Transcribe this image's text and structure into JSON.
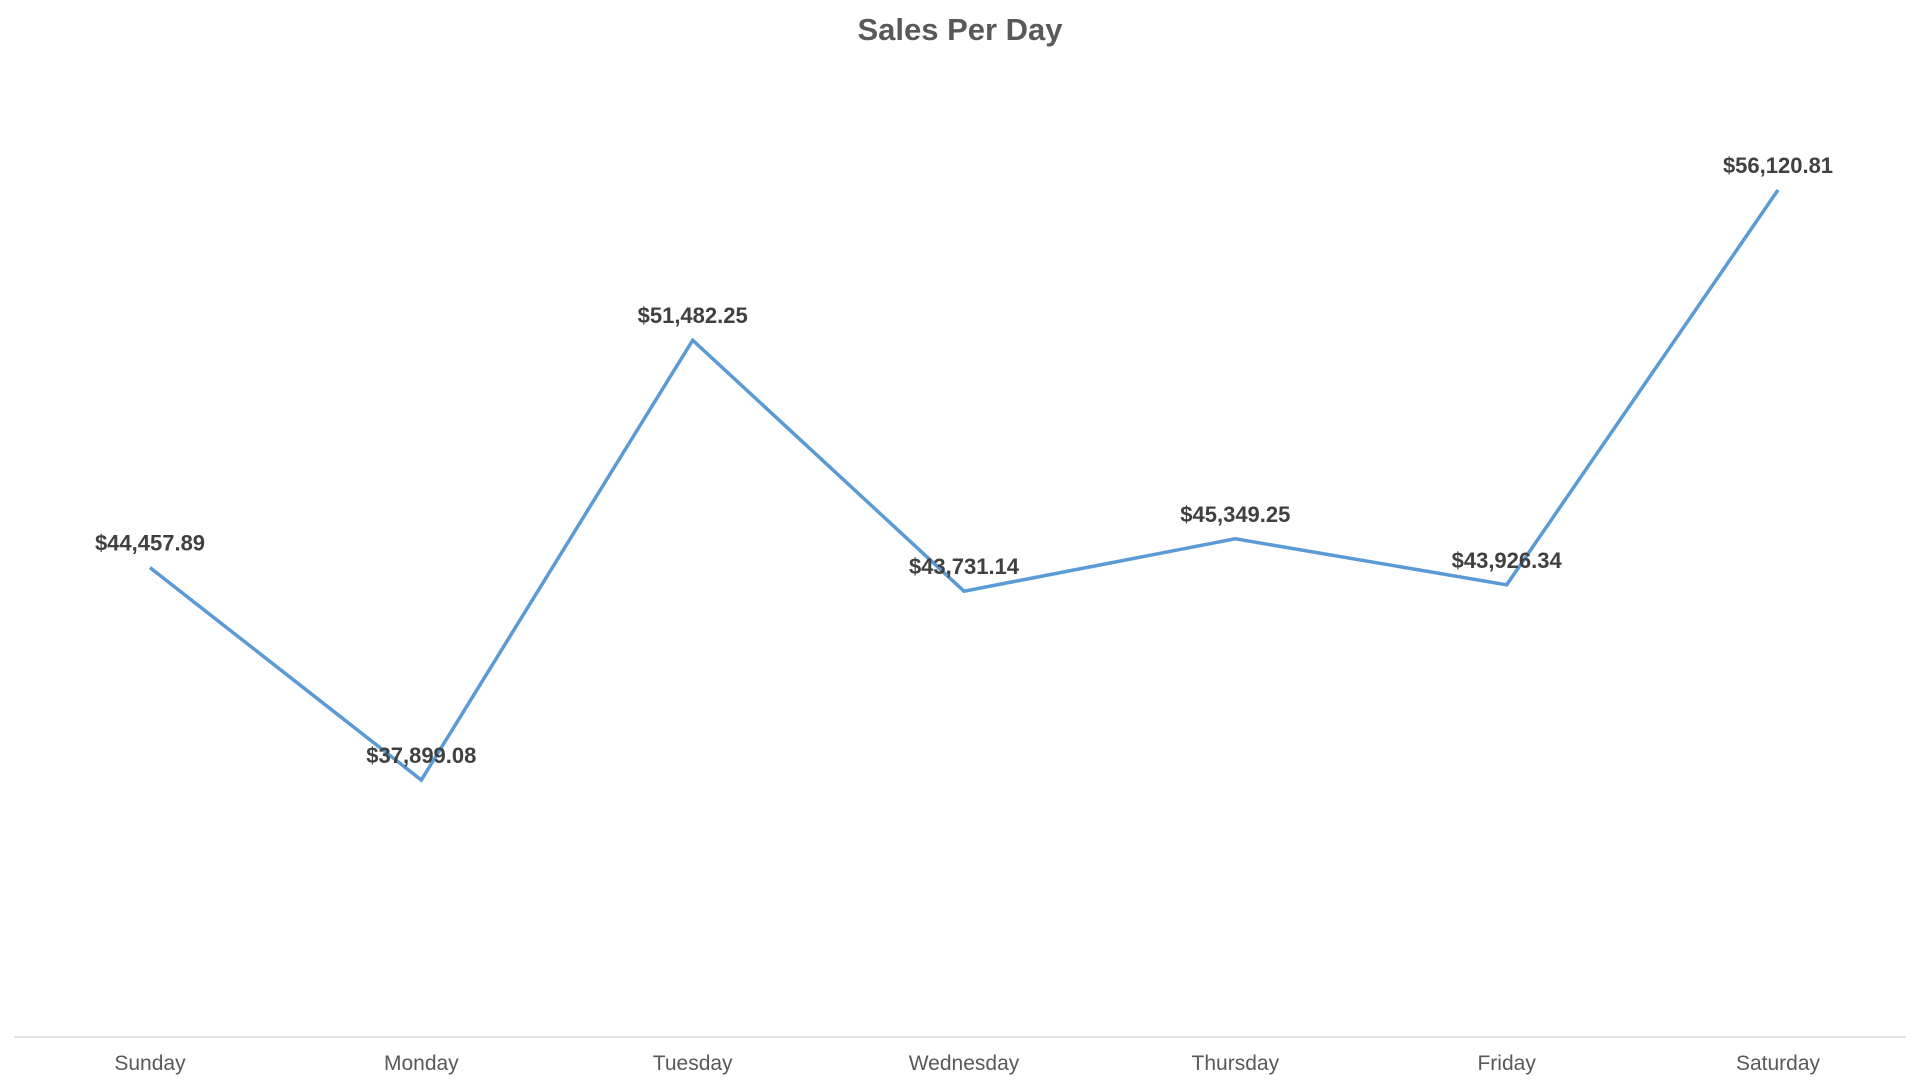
{
  "chart_data": {
    "type": "line",
    "title": "Sales Per Day",
    "xlabel": "",
    "ylabel": "",
    "categories": [
      "Sunday",
      "Monday",
      "Tuesday",
      "Wednesday",
      "Thursday",
      "Friday",
      "Saturday"
    ],
    "series": [
      {
        "values": [
          44457.89,
          37899.08,
          51482.25,
          43731.14,
          45349.25,
          43926.34,
          56120.81
        ],
        "labels": [
          "$44,457.89",
          "$37,899.08",
          "$51,482.25",
          "$43,731.14",
          "$45,349.25",
          "$43,926.34",
          "$56,120.81"
        ],
        "color": "#5b9bd5"
      }
    ],
    "grid": false,
    "legend": "none",
    "y_axis_visible": false
  }
}
